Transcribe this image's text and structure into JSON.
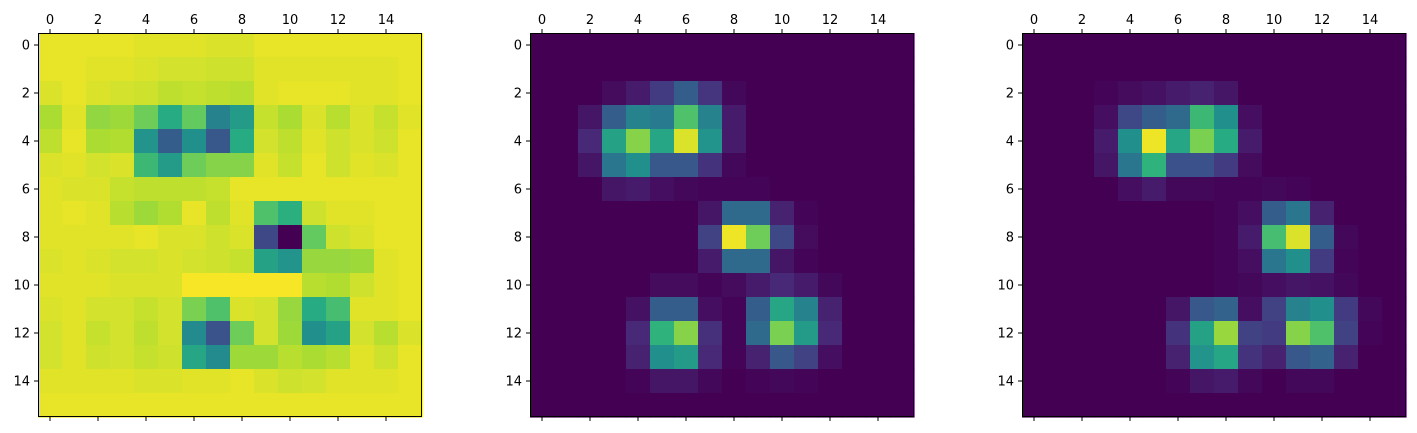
{
  "figure": {
    "panel_count": 3
  },
  "chart_data": [
    {
      "type": "heatmap",
      "colormap": "viridis",
      "vmin": 0,
      "vmax": 1,
      "title": "",
      "xlabel": "",
      "ylabel": "",
      "x_ticks": [
        0,
        2,
        4,
        6,
        8,
        10,
        12,
        14
      ],
      "x_tick_position": "top",
      "y_ticks": [
        0,
        2,
        4,
        6,
        8,
        10,
        12,
        14
      ],
      "grid": false,
      "xlim": [
        -0.5,
        15.5
      ],
      "ylim": [
        15.5,
        -0.5
      ],
      "matrix": [
        [
          0.97,
          0.97,
          0.97,
          0.97,
          0.96,
          0.96,
          0.96,
          0.95,
          0.95,
          0.97,
          0.97,
          0.97,
          0.97,
          0.97,
          0.97,
          0.97
        ],
        [
          0.97,
          0.97,
          0.96,
          0.96,
          0.95,
          0.94,
          0.94,
          0.93,
          0.93,
          0.96,
          0.96,
          0.96,
          0.96,
          0.96,
          0.96,
          0.97
        ],
        [
          0.95,
          0.97,
          0.95,
          0.94,
          0.93,
          0.91,
          0.92,
          0.91,
          0.9,
          0.96,
          0.97,
          0.97,
          0.97,
          0.96,
          0.96,
          0.97
        ],
        [
          0.88,
          0.96,
          0.84,
          0.86,
          0.78,
          0.62,
          0.76,
          0.45,
          0.55,
          0.92,
          0.88,
          0.95,
          0.9,
          0.95,
          0.92,
          0.96
        ],
        [
          0.91,
          0.97,
          0.88,
          0.89,
          0.52,
          0.3,
          0.5,
          0.28,
          0.62,
          0.94,
          0.91,
          0.96,
          0.93,
          0.95,
          0.93,
          0.97
        ],
        [
          0.95,
          0.96,
          0.94,
          0.95,
          0.68,
          0.55,
          0.78,
          0.82,
          0.82,
          0.96,
          0.92,
          0.97,
          0.93,
          0.96,
          0.95,
          0.97
        ],
        [
          0.96,
          0.95,
          0.95,
          0.92,
          0.91,
          0.91,
          0.91,
          0.92,
          0.97,
          0.97,
          0.97,
          0.97,
          0.97,
          0.97,
          0.97,
          0.97
        ],
        [
          0.96,
          0.97,
          0.96,
          0.9,
          0.86,
          0.89,
          0.97,
          0.91,
          0.96,
          0.72,
          0.64,
          0.93,
          0.96,
          0.96,
          0.97,
          0.97
        ],
        [
          0.96,
          0.96,
          0.96,
          0.96,
          0.97,
          0.95,
          0.95,
          0.93,
          0.95,
          0.22,
          0.0,
          0.76,
          0.93,
          0.95,
          0.97,
          0.97
        ],
        [
          0.95,
          0.96,
          0.95,
          0.94,
          0.94,
          0.95,
          0.94,
          0.93,
          0.92,
          0.58,
          0.52,
          0.85,
          0.85,
          0.86,
          0.96,
          0.97
        ],
        [
          0.96,
          0.96,
          0.96,
          0.95,
          0.95,
          0.95,
          0.99,
          0.99,
          0.99,
          0.99,
          0.99,
          0.9,
          0.89,
          0.93,
          0.96,
          0.97
        ],
        [
          0.95,
          0.96,
          0.94,
          0.94,
          0.92,
          0.94,
          0.8,
          0.72,
          0.95,
          0.94,
          0.85,
          0.62,
          0.7,
          0.96,
          0.96,
          0.97
        ],
        [
          0.94,
          0.96,
          0.92,
          0.94,
          0.91,
          0.94,
          0.48,
          0.26,
          0.78,
          0.94,
          0.86,
          0.5,
          0.58,
          0.94,
          0.9,
          0.95
        ],
        [
          0.94,
          0.96,
          0.93,
          0.94,
          0.92,
          0.93,
          0.6,
          0.48,
          0.86,
          0.86,
          0.9,
          0.88,
          0.9,
          0.96,
          0.93,
          0.97
        ],
        [
          0.96,
          0.96,
          0.96,
          0.96,
          0.95,
          0.95,
          0.96,
          0.96,
          0.97,
          0.95,
          0.93,
          0.94,
          0.96,
          0.96,
          0.96,
          0.97
        ],
        [
          0.97,
          0.97,
          0.97,
          0.97,
          0.97,
          0.97,
          0.97,
          0.97,
          0.97,
          0.97,
          0.97,
          0.97,
          0.97,
          0.97,
          0.97,
          0.97
        ]
      ]
    },
    {
      "type": "heatmap",
      "colormap": "viridis",
      "vmin": 0,
      "vmax": 1,
      "title": "",
      "xlabel": "",
      "ylabel": "",
      "x_ticks": [
        0,
        2,
        4,
        6,
        8,
        10,
        12,
        14
      ],
      "x_tick_position": "top",
      "y_ticks": [
        0,
        2,
        4,
        6,
        8,
        10,
        12,
        14
      ],
      "grid": false,
      "xlim": [
        -0.5,
        15.5
      ],
      "ylim": [
        15.5,
        -0.5
      ],
      "matrix": [
        [
          0,
          0,
          0,
          0,
          0,
          0,
          0,
          0,
          0,
          0,
          0,
          0,
          0,
          0,
          0,
          0
        ],
        [
          0,
          0,
          0,
          0,
          0,
          0,
          0,
          0,
          0,
          0,
          0,
          0,
          0,
          0,
          0,
          0
        ],
        [
          0,
          0,
          0,
          0.03,
          0.08,
          0.18,
          0.3,
          0.16,
          0.02,
          0,
          0,
          0,
          0,
          0,
          0,
          0
        ],
        [
          0,
          0,
          0.06,
          0.3,
          0.45,
          0.42,
          0.72,
          0.45,
          0.08,
          0,
          0,
          0,
          0,
          0,
          0,
          0
        ],
        [
          0,
          0,
          0.12,
          0.58,
          0.82,
          0.6,
          0.95,
          0.52,
          0.08,
          0,
          0,
          0,
          0,
          0,
          0,
          0
        ],
        [
          0,
          0,
          0.06,
          0.4,
          0.5,
          0.28,
          0.28,
          0.15,
          0.02,
          0,
          0,
          0,
          0,
          0,
          0,
          0
        ],
        [
          0,
          0,
          0,
          0.06,
          0.08,
          0.04,
          0.02,
          0.01,
          0.01,
          0.01,
          0,
          0,
          0,
          0,
          0,
          0
        ],
        [
          0,
          0,
          0,
          0,
          0,
          0,
          0,
          0.06,
          0.35,
          0.35,
          0.1,
          0.01,
          0,
          0,
          0,
          0
        ],
        [
          0,
          0,
          0,
          0,
          0,
          0,
          0,
          0.2,
          0.98,
          0.78,
          0.22,
          0.03,
          0,
          0,
          0,
          0
        ],
        [
          0,
          0,
          0,
          0,
          0,
          0,
          0,
          0.08,
          0.35,
          0.35,
          0.06,
          0.01,
          0,
          0,
          0,
          0
        ],
        [
          0,
          0,
          0,
          0,
          0,
          0.03,
          0.03,
          0.01,
          0.03,
          0.08,
          0.12,
          0.08,
          0.02,
          0,
          0,
          0
        ],
        [
          0,
          0,
          0,
          0,
          0.05,
          0.3,
          0.3,
          0.04,
          0.01,
          0.3,
          0.6,
          0.45,
          0.1,
          0,
          0,
          0
        ],
        [
          0,
          0,
          0,
          0,
          0.12,
          0.65,
          0.82,
          0.14,
          0.01,
          0.35,
          0.8,
          0.55,
          0.12,
          0,
          0,
          0
        ],
        [
          0,
          0,
          0,
          0,
          0.1,
          0.5,
          0.55,
          0.12,
          0.01,
          0.1,
          0.28,
          0.2,
          0.04,
          0,
          0,
          0
        ],
        [
          0,
          0,
          0,
          0,
          0.01,
          0.06,
          0.06,
          0.02,
          0,
          0.01,
          0.02,
          0.01,
          0,
          0,
          0,
          0
        ],
        [
          0,
          0,
          0,
          0,
          0,
          0,
          0,
          0,
          0,
          0,
          0,
          0,
          0,
          0,
          0,
          0
        ]
      ]
    },
    {
      "type": "heatmap",
      "colormap": "viridis",
      "vmin": 0,
      "vmax": 1,
      "title": "",
      "xlabel": "",
      "ylabel": "",
      "x_ticks": [
        0,
        2,
        4,
        6,
        8,
        10,
        12,
        14
      ],
      "x_tick_position": "top",
      "y_ticks": [
        0,
        2,
        4,
        6,
        8,
        10,
        12,
        14
      ],
      "grid": false,
      "xlim": [
        -0.5,
        15.5
      ],
      "ylim": [
        15.5,
        -0.5
      ],
      "matrix": [
        [
          0,
          0,
          0,
          0,
          0,
          0,
          0,
          0,
          0,
          0,
          0,
          0,
          0,
          0,
          0,
          0
        ],
        [
          0,
          0,
          0,
          0,
          0,
          0,
          0,
          0,
          0,
          0,
          0,
          0,
          0,
          0,
          0,
          0
        ],
        [
          0,
          0,
          0,
          0.01,
          0.03,
          0.05,
          0.08,
          0.1,
          0.06,
          0,
          0,
          0,
          0,
          0,
          0,
          0
        ],
        [
          0,
          0,
          0,
          0.04,
          0.22,
          0.3,
          0.35,
          0.68,
          0.5,
          0.04,
          0,
          0,
          0,
          0,
          0,
          0
        ],
        [
          0,
          0,
          0,
          0.08,
          0.5,
          0.98,
          0.6,
          0.8,
          0.62,
          0.08,
          0,
          0,
          0,
          0,
          0,
          0
        ],
        [
          0,
          0,
          0,
          0.06,
          0.4,
          0.65,
          0.25,
          0.25,
          0.18,
          0.03,
          0,
          0,
          0,
          0,
          0,
          0
        ],
        [
          0,
          0,
          0,
          0,
          0.04,
          0.08,
          0.02,
          0.02,
          0.01,
          0.01,
          0.02,
          0.01,
          0,
          0,
          0,
          0
        ],
        [
          0,
          0,
          0,
          0,
          0,
          0,
          0,
          0,
          0.01,
          0.04,
          0.3,
          0.4,
          0.1,
          0,
          0,
          0
        ],
        [
          0,
          0,
          0,
          0,
          0,
          0,
          0,
          0,
          0.01,
          0.08,
          0.7,
          0.95,
          0.3,
          0.02,
          0,
          0
        ],
        [
          0,
          0,
          0,
          0,
          0,
          0,
          0,
          0,
          0.01,
          0.04,
          0.4,
          0.5,
          0.18,
          0.01,
          0,
          0
        ],
        [
          0,
          0,
          0,
          0,
          0,
          0,
          0,
          0,
          0.01,
          0.02,
          0.04,
          0.06,
          0.05,
          0.02,
          0,
          0
        ],
        [
          0,
          0,
          0,
          0,
          0,
          0,
          0.06,
          0.28,
          0.32,
          0.04,
          0.2,
          0.45,
          0.5,
          0.18,
          0.02,
          0
        ],
        [
          0,
          0,
          0,
          0,
          0,
          0,
          0.15,
          0.58,
          0.85,
          0.2,
          0.18,
          0.82,
          0.72,
          0.2,
          0.01,
          0
        ],
        [
          0,
          0,
          0,
          0,
          0,
          0,
          0.1,
          0.52,
          0.6,
          0.15,
          0.1,
          0.28,
          0.32,
          0.1,
          0,
          0
        ],
        [
          0,
          0,
          0,
          0,
          0,
          0,
          0.01,
          0.06,
          0.08,
          0.02,
          0,
          0.02,
          0.02,
          0,
          0,
          0
        ],
        [
          0,
          0,
          0,
          0,
          0,
          0,
          0,
          0,
          0,
          0,
          0,
          0,
          0,
          0,
          0,
          0
        ]
      ]
    }
  ]
}
